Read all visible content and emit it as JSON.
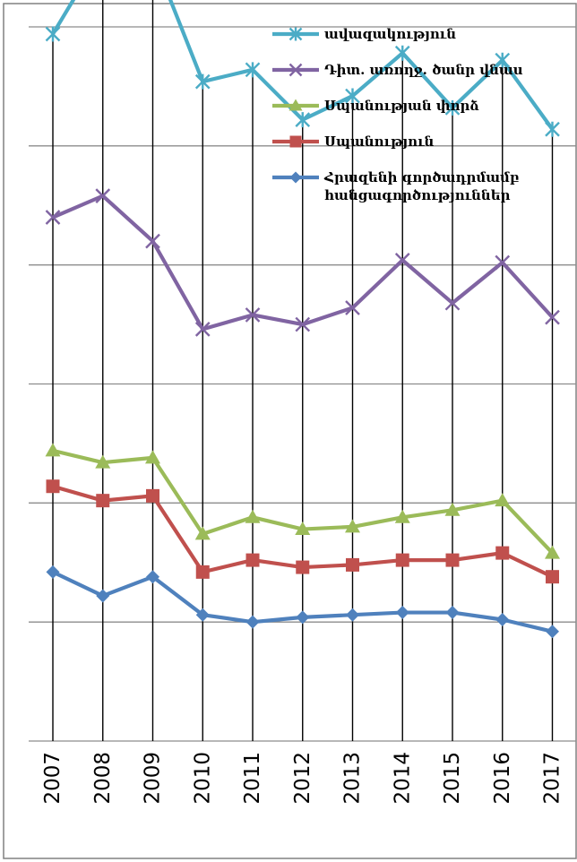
{
  "chart_data": {
    "type": "line",
    "categories": [
      "2007",
      "2008",
      "2009",
      "2010",
      "2011",
      "2012",
      "2013",
      "2014",
      "2015",
      "2016",
      "2017"
    ],
    "series": [
      {
        "name": "ավազակություն",
        "color": "#4bacc6",
        "marker": "star",
        "values": [
          27.7,
          31.2,
          31.0,
          25.7,
          26.2,
          24.1,
          25.1,
          26.9,
          24.6,
          26.6,
          23.7
        ]
      },
      {
        "name": "Դիտ. առողջ. ծանր վնաս",
        "color": "#8064a2",
        "marker": "x",
        "values": [
          20.0,
          20.9,
          19.0,
          15.3,
          15.9,
          15.5,
          16.2,
          18.2,
          16.4,
          18.1,
          15.8
        ]
      },
      {
        "name": "Սպանության փորձ",
        "color": "#9bbb59",
        "marker": "triangle",
        "values": [
          10.2,
          9.7,
          9.9,
          6.7,
          7.4,
          6.9,
          7.0,
          7.4,
          7.7,
          8.1,
          5.9
        ]
      },
      {
        "name": "Սպանություն",
        "color": "#c0504d",
        "marker": "square",
        "values": [
          8.7,
          8.1,
          8.3,
          5.1,
          5.6,
          5.3,
          5.4,
          5.6,
          5.6,
          5.9,
          4.9
        ]
      },
      {
        "name": "Հրազենի գործադրմամբ հանցագործություններ",
        "color": "#4f81bd",
        "marker": "diamond",
        "values": [
          5.1,
          4.1,
          4.9,
          3.3,
          3.0,
          3.2,
          3.3,
          3.4,
          3.4,
          3.1,
          2.6
        ]
      }
    ],
    "ylim": [
      -2,
      28
    ],
    "y_gridlines": [
      -2,
      3,
      8,
      13,
      18,
      23,
      28
    ],
    "grid": {
      "horizontal": true,
      "vertical_drop_lines": true
    },
    "legend_placement": "top-right",
    "legend_lines": [
      [
        "ավազակություն"
      ],
      [
        "Դիտ. առողջ. ծանր վնաս"
      ],
      [
        "Սպանության փորձ"
      ],
      [
        "Սպանություն"
      ],
      [
        "Հրազենի գործադրմամբ",
        "հանցագործություններ"
      ]
    ]
  }
}
